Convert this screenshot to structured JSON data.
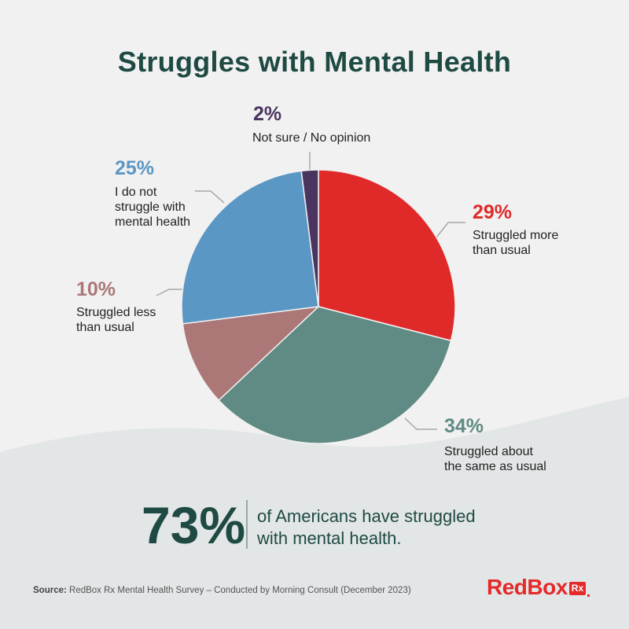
{
  "title": "Struggles with Mental Health",
  "chart_data": {
    "type": "pie",
    "title": "Struggles with Mental Health",
    "slices": [
      {
        "label": "Struggled more than usual",
        "value": 29,
        "display": "29%",
        "color": "#e02a2a"
      },
      {
        "label": "Struggled about the same as usual",
        "value": 34,
        "display": "34%",
        "color": "#5f8b84"
      },
      {
        "label": "Struggled less than usual",
        "value": 10,
        "display": "10%",
        "color": "#ab7777"
      },
      {
        "label": "I do not struggle with mental health",
        "value": 25,
        "display": "25%",
        "color": "#5b97c5"
      },
      {
        "label": "Not sure / No opinion",
        "value": 2,
        "display": "2%",
        "color": "#4a3560"
      }
    ]
  },
  "callouts": {
    "more": {
      "pct": "29%",
      "text": "Struggled more\nthan usual"
    },
    "same": {
      "pct": "34%",
      "text": "Struggled about\nthe same as usual"
    },
    "less": {
      "pct": "10%",
      "text": "Struggled less\nthan usual"
    },
    "none": {
      "pct": "25%",
      "text": "I do not\nstruggle with\nmental health"
    },
    "unsure": {
      "pct": "2%",
      "text": "Not sure / No opinion"
    }
  },
  "stat": {
    "number": "73%",
    "text": "of Americans have struggled\nwith mental health."
  },
  "source": {
    "label": "Source:",
    "text": " RedBox Rx Mental Health Survey – Conducted by Morning Consult (December 2023)"
  },
  "logo": {
    "text": "RedBox",
    "badge": "Rx"
  }
}
